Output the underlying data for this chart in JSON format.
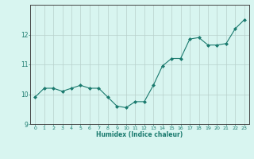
{
  "x": [
    0,
    1,
    2,
    3,
    4,
    5,
    6,
    7,
    8,
    9,
    10,
    11,
    12,
    13,
    14,
    15,
    16,
    17,
    18,
    19,
    20,
    21,
    22,
    23
  ],
  "y": [
    9.9,
    10.2,
    10.2,
    10.1,
    10.2,
    10.3,
    10.2,
    10.2,
    9.9,
    9.6,
    9.55,
    9.75,
    9.75,
    10.3,
    10.95,
    11.2,
    11.2,
    11.85,
    11.9,
    11.65,
    11.65,
    11.7,
    12.2,
    12.5
  ],
  "line_color": "#1a7a6e",
  "marker": "D",
  "marker_size": 2,
  "bg_color": "#d8f5f0",
  "grid_color": "#b8d0cc",
  "xlabel": "Humidex (Indice chaleur)",
  "xlabel_color": "#1a7a6e",
  "tick_color": "#1a7a6e",
  "ylim": [
    9.0,
    13.0
  ],
  "xlim": [
    -0.5,
    23.5
  ],
  "yticks": [
    9,
    10,
    11,
    12
  ],
  "xticks": [
    0,
    1,
    2,
    3,
    4,
    5,
    6,
    7,
    8,
    9,
    10,
    11,
    12,
    13,
    14,
    15,
    16,
    17,
    18,
    19,
    20,
    21,
    22,
    23
  ],
  "figsize": [
    3.2,
    2.0
  ],
  "dpi": 100
}
